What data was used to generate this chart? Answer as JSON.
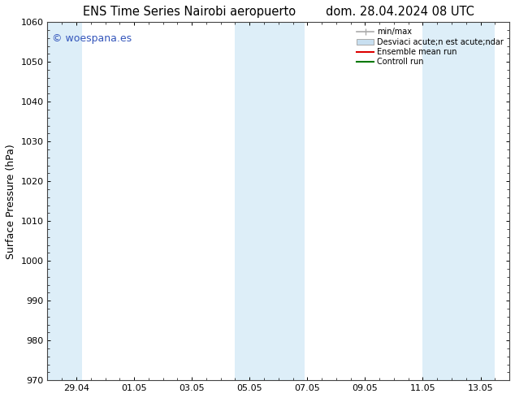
{
  "title_left": "ENS Time Series Nairobi aeropuerto",
  "title_right": "dom. 28.04.2024 08 UTC",
  "ylabel": "Surface Pressure (hPa)",
  "ylim": [
    970,
    1060
  ],
  "yticks": [
    970,
    980,
    990,
    1000,
    1010,
    1020,
    1030,
    1040,
    1050,
    1060
  ],
  "xtick_labels": [
    "29.04",
    "01.05",
    "03.05",
    "05.05",
    "07.05",
    "09.05",
    "11.05",
    "13.05"
  ],
  "xtick_positions": [
    1,
    3,
    5,
    7,
    9,
    11,
    13,
    15
  ],
  "xlim": [
    0,
    16
  ],
  "shaded_bands": [
    {
      "x_start": 0.0,
      "x_end": 1.2,
      "color": "#ddeef8"
    },
    {
      "x_start": 6.5,
      "x_end": 7.8,
      "color": "#ddeef8"
    },
    {
      "x_start": 7.8,
      "x_end": 8.9,
      "color": "#ddeef8"
    },
    {
      "x_start": 13.0,
      "x_end": 14.2,
      "color": "#ddeef8"
    },
    {
      "x_start": 14.2,
      "x_end": 15.5,
      "color": "#ddeef8"
    }
  ],
  "watermark": "© woespana.es",
  "watermark_color": "#3355bb",
  "background_color": "#ffffff",
  "plot_bg_color": "#ffffff",
  "legend_line1": "min/max",
  "legend_line2": "Desviaci acute;n est acute;ndar",
  "legend_line3": "Ensemble mean run",
  "legend_line4": "Controll run",
  "legend_color1": "#aaaaaa",
  "legend_color2": "#c8dff0",
  "legend_color3": "#dd0000",
  "legend_color4": "#007700",
  "title_fontsize": 10.5,
  "tick_fontsize": 8,
  "ylabel_fontsize": 9
}
